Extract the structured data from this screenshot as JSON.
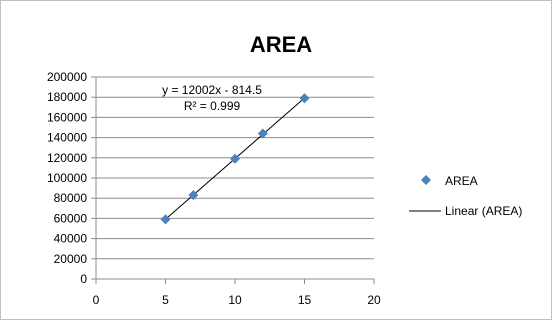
{
  "chart_data": {
    "type": "scatter",
    "title": "AREA",
    "xlabel": "",
    "ylabel": "",
    "xlim": [
      0,
      20
    ],
    "ylim": [
      0,
      200000
    ],
    "x_ticks": [
      "0",
      "5",
      "10",
      "15",
      "20"
    ],
    "y_ticks": [
      "0",
      "20000",
      "40000",
      "60000",
      "80000",
      "100000",
      "120000",
      "140000",
      "160000",
      "180000",
      "200000"
    ],
    "grid": "horizontal",
    "legend_position": "right",
    "series": [
      {
        "name": "AREA",
        "color": "#4f81bd",
        "marker": "diamond",
        "x": [
          5,
          7,
          10,
          12,
          15
        ],
        "y": [
          59000,
          83000,
          119000,
          144000,
          179000
        ]
      }
    ],
    "trendline": {
      "name": "Linear (AREA)",
      "color": "#000000",
      "slope": 12002,
      "intercept": -814.5,
      "equation_label": "y = 12002x - 814.5",
      "r2_label": "R² = 0.999"
    }
  }
}
